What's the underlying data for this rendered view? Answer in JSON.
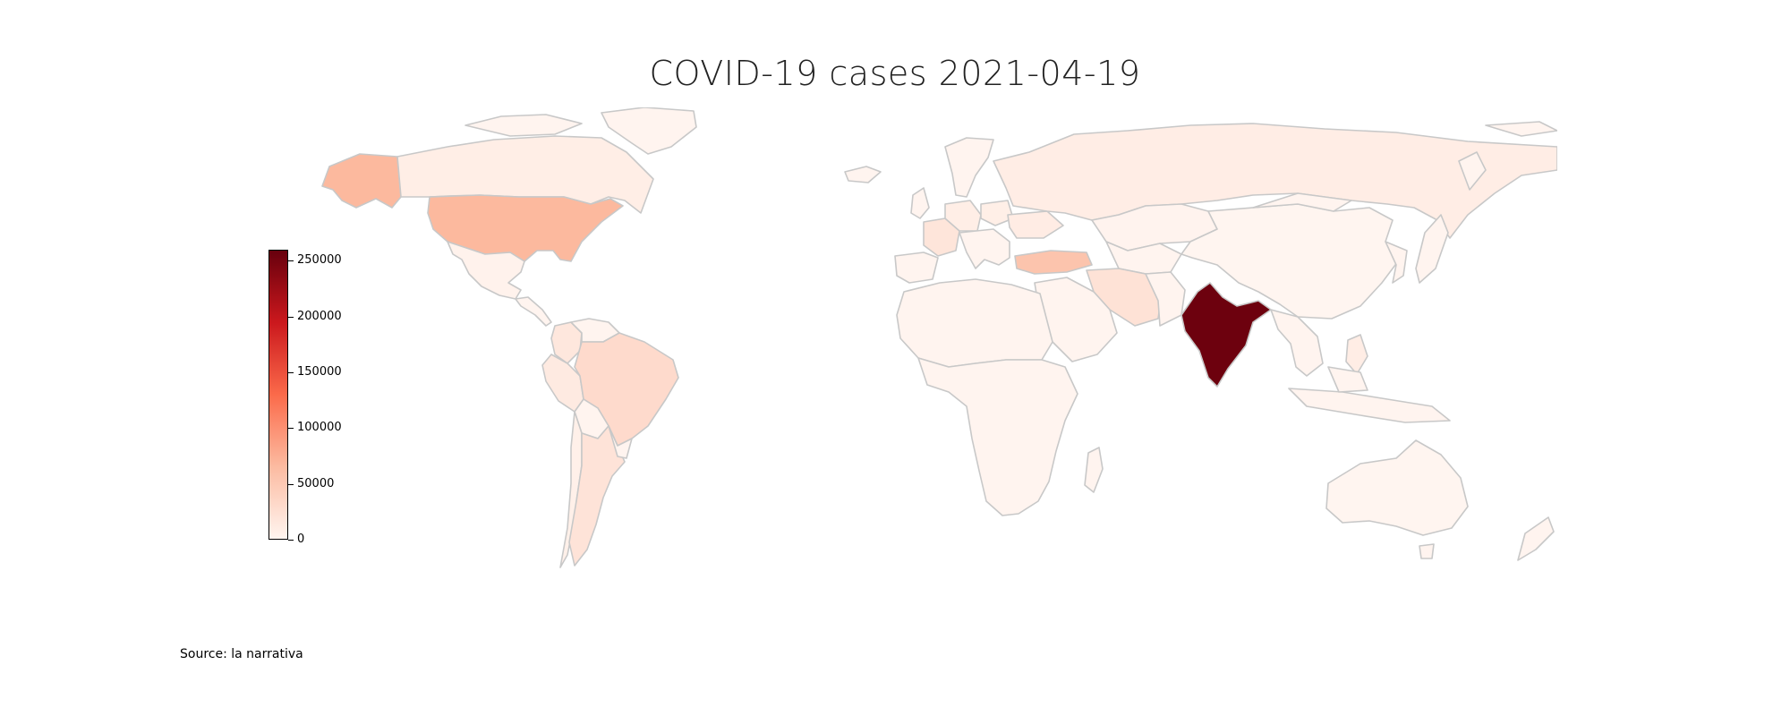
{
  "title": "COVID-19 cases 2021-04-19",
  "source": "Source: la narrativa",
  "colorbar": {
    "min": 0,
    "max": 260000,
    "ticks": [
      0,
      50000,
      100000,
      150000,
      200000,
      250000
    ],
    "tick_labels": [
      "0",
      "50000",
      "100000",
      "150000",
      "200000",
      "250000"
    ],
    "colors": [
      "#fff5f0",
      "#fcbba1",
      "#fb6a4a",
      "#cb181d",
      "#67000d"
    ]
  },
  "border_color": "#c8c8c8",
  "chart_data": {
    "type": "choropleth",
    "title": "COVID-19 cases 2021-04-19",
    "value_label": "",
    "regions": [
      {
        "name": "India",
        "value": 256000
      },
      {
        "name": "United States",
        "value": 67000
      },
      {
        "name": "Alaska",
        "value": 67000
      },
      {
        "name": "Turkey",
        "value": 55000
      },
      {
        "name": "Brazil",
        "value": 30000
      },
      {
        "name": "Iran",
        "value": 21000
      },
      {
        "name": "Argentina",
        "value": 20000
      },
      {
        "name": "Colombia",
        "value": 16000
      },
      {
        "name": "France",
        "value": 18000
      },
      {
        "name": "Peru",
        "value": 12000
      },
      {
        "name": "Ukraine",
        "value": 10000
      },
      {
        "name": "Russia",
        "value": 9000
      },
      {
        "name": "Canada",
        "value": 8000
      },
      {
        "name": "Germany",
        "value": 8000
      },
      {
        "name": "Poland",
        "value": 7000
      },
      {
        "name": "Philippines",
        "value": 9000
      },
      {
        "name": "Mexico",
        "value": 3000
      },
      {
        "name": "Chile",
        "value": 6000
      },
      {
        "name": "Kazakhstan",
        "value": 2000
      },
      {
        "name": "China",
        "value": 100
      },
      {
        "name": "Australia",
        "value": 10
      },
      {
        "name": "Other",
        "value": 1000
      }
    ]
  }
}
